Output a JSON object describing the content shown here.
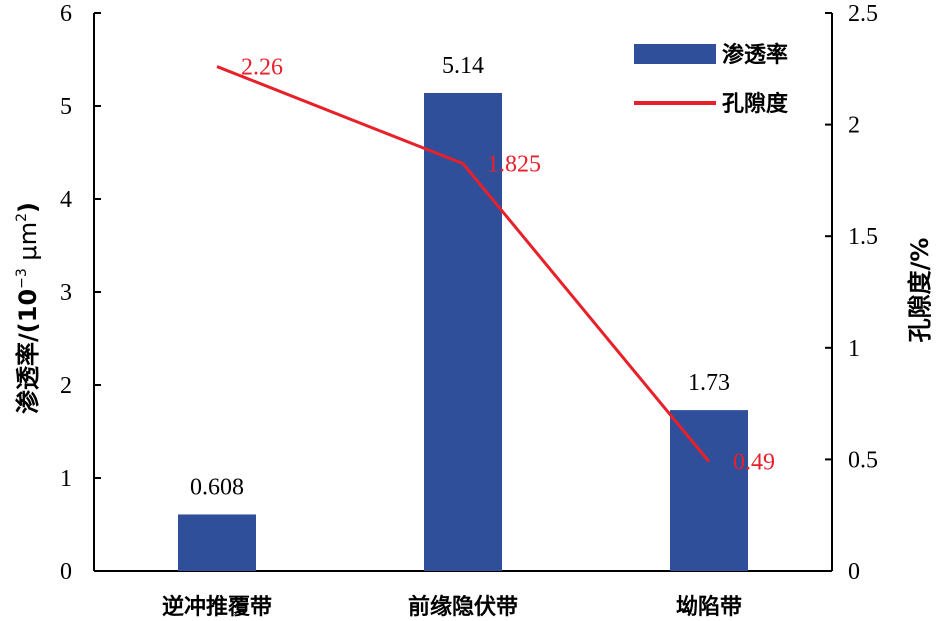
{
  "chart_data": {
    "type": "bar",
    "categories": [
      "逆冲推覆带",
      "前缘隐伏带",
      "坳陷带"
    ],
    "series": [
      {
        "name": "渗透率",
        "type": "bar",
        "axis": "left",
        "values": [
          0.608,
          5.14,
          1.73
        ],
        "labels": [
          "0.608",
          "5.14",
          "1.73"
        ],
        "color": "#2f4f9b"
      },
      {
        "name": "孔隙度",
        "type": "line",
        "axis": "right",
        "values": [
          2.26,
          1.825,
          0.49
        ],
        "labels": [
          "2.26",
          "1.825",
          "0.49"
        ],
        "color": "#e8202a"
      }
    ],
    "ylabel_left": "渗透率/(10⁻³ μm²)",
    "ylabel_left_parts": {
      "prefix": "渗透率/(10",
      "sup1": "−3",
      "mid": " μm",
      "sup2": "2",
      "suffix": ")"
    },
    "ylabel_right": "孔隙度/%",
    "ylim_left": [
      0,
      6
    ],
    "ylim_right": [
      0,
      2.5
    ],
    "yticks_left": [
      "0",
      "1",
      "2",
      "3",
      "4",
      "5",
      "6"
    ],
    "yticks_right": [
      "0",
      "0.5",
      "1",
      "1.5",
      "2",
      "2.5"
    ],
    "legend_position": "top-right",
    "grid": false
  }
}
